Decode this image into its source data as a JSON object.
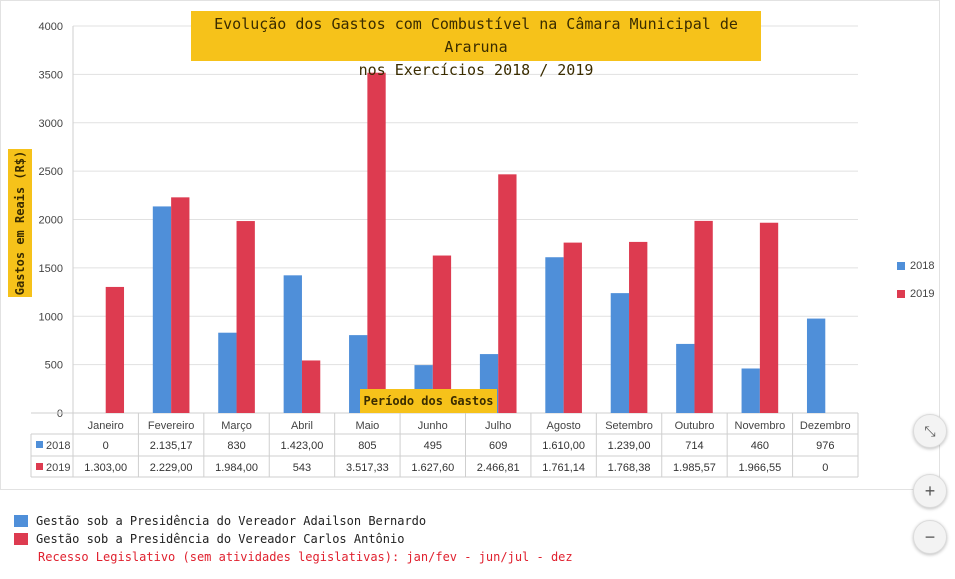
{
  "chart_data": {
    "type": "bar",
    "title_lines": [
      "Evolução dos Gastos com Combustível na Câmara Municipal de Araruna",
      "nos Exercícios 2018 / 2019"
    ],
    "ylabel": "Gastos em Reais (R$)",
    "xlabel": "Período dos Gastos",
    "ylim": [
      0,
      4000
    ],
    "yticks": [
      "0",
      "500",
      "1000",
      "1500",
      "2000",
      "2500",
      "3000",
      "3500",
      "4000"
    ],
    "grid": true,
    "legend_position": "right",
    "categories": [
      "Janeiro",
      "Fevereiro",
      "Março",
      "Abril",
      "Maio",
      "Junho",
      "Julho",
      "Agosto",
      "Setembro",
      "Outubro",
      "Novembro",
      "Dezembro"
    ],
    "series": [
      {
        "name": "2018",
        "color": "#4f8fd9",
        "values": [
          0,
          2135.17,
          830,
          1423.0,
          805,
          495,
          609,
          1610.0,
          1239.0,
          714,
          460,
          976
        ],
        "labels": [
          "0",
          "2.135,17",
          "830",
          "1.423,00",
          "805",
          "495",
          "609",
          "1.610,00",
          "1.239,00",
          "714",
          "460",
          "976"
        ]
      },
      {
        "name": "2019",
        "color": "#dd3b50",
        "values": [
          1303.0,
          2229.0,
          1984.0,
          543,
          3517.33,
          1627.6,
          2466.81,
          1761.14,
          1768.38,
          1985.57,
          1966.55,
          0
        ],
        "labels": [
          "1.303,00",
          "2.229,00",
          "1.984,00",
          "543",
          "3.517,33",
          "1.627,60",
          "2.466,81",
          "1.761,14",
          "1.768,38",
          "1.985,57",
          "1.966,55",
          "0"
        ]
      }
    ]
  },
  "footnotes": {
    "item_1": "Gestão sob a Presidência do Vereador Adailson Bernardo",
    "item_2": "Gestão sob a Presidência do Vereador Carlos Antônio",
    "recess": "Recesso Legislativo (sem atividades legislativas): jan/fev - jun/jul - dez"
  },
  "controls": {
    "fit_icon": "⤡",
    "zoom_in_label": "+",
    "zoom_out_label": "−"
  }
}
